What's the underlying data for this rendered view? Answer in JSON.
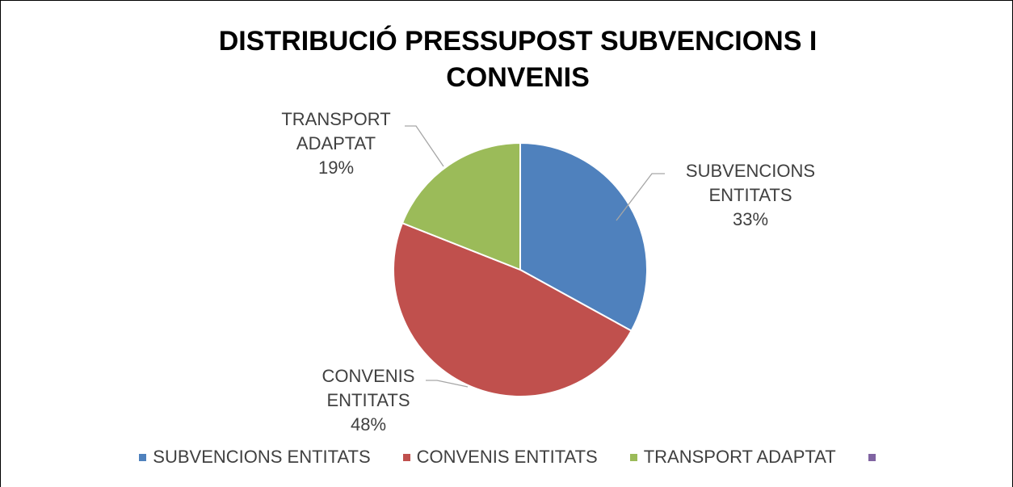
{
  "chart_data": {
    "type": "pie",
    "title": "DISTRIBUCIÓ PRESSUPOST SUBVENCIONS I CONVENIS",
    "categories": [
      "SUBVENCIONS ENTITATS",
      "CONVENIS ENTITATS",
      "TRANSPORT ADAPTAT",
      null
    ],
    "values": [
      33,
      48,
      19,
      0
    ],
    "value_labels": [
      "33%",
      "48%",
      "19%",
      null
    ],
    "colors": [
      "#4f81bd",
      "#c0504d",
      "#9bbb59",
      "#8064a2"
    ],
    "legend": "bottom"
  }
}
